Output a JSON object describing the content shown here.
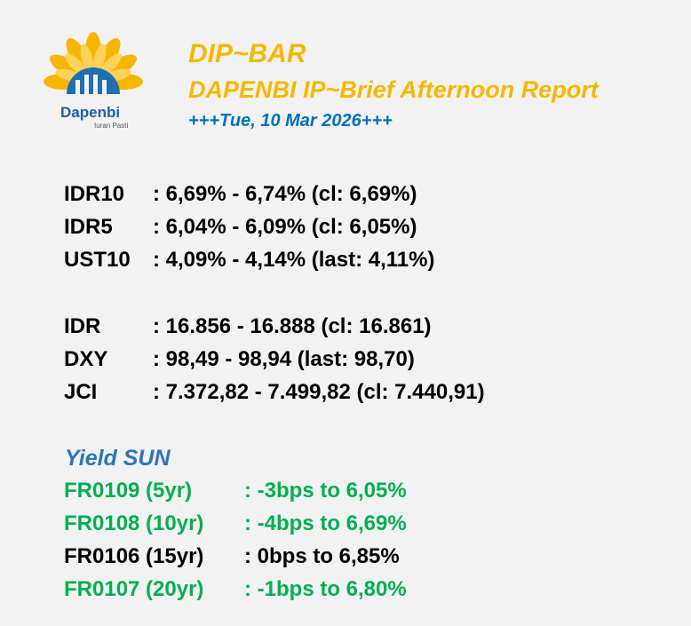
{
  "header": {
    "title": "DIP~BAR",
    "subtitle": "DAPENBI IP~Brief Afternoon Report",
    "date": "+++Tue, 10 Mar 2026+++"
  },
  "logo": {
    "name": "Dapenbi",
    "tagline": "Iuran Pasti"
  },
  "yields": [
    {
      "label": "IDR10",
      "value": ": 6,69% - 6,74% (cl: 6,69%)"
    },
    {
      "label": "IDR5",
      "value": ": 6,04% - 6,09% (cl: 6,05%)"
    },
    {
      "label": "UST10",
      "value": ": 4,09% - 4,14% (last: 4,11%)"
    }
  ],
  "markets": [
    {
      "label": "IDR",
      "value": ": 16.856 - 16.888 (cl: 16.861)"
    },
    {
      "label": "DXY",
      "value": ": 98,49 - 98,94 (last: 98,70)"
    },
    {
      "label": "JCI",
      "value": ": 7.372,82 - 7.499,82 (cl: 7.440,91)"
    }
  ],
  "sun": {
    "title": "Yield SUN",
    "rows": [
      {
        "label": "FR0109 (5yr)",
        "value": ": -3bps to 6,05%",
        "color": "#00b050"
      },
      {
        "label": "FR0108 (10yr)",
        "value": ": -4bps to 6,69%",
        "color": "#00b050"
      },
      {
        "label": "FR0106 (15yr)",
        "value": ": 0bps to 6,85%",
        "color": "#000000"
      },
      {
        "label": "FR0107 (20yr)",
        "value": ": -1bps to 6,80%",
        "color": "#00b050"
      }
    ]
  }
}
